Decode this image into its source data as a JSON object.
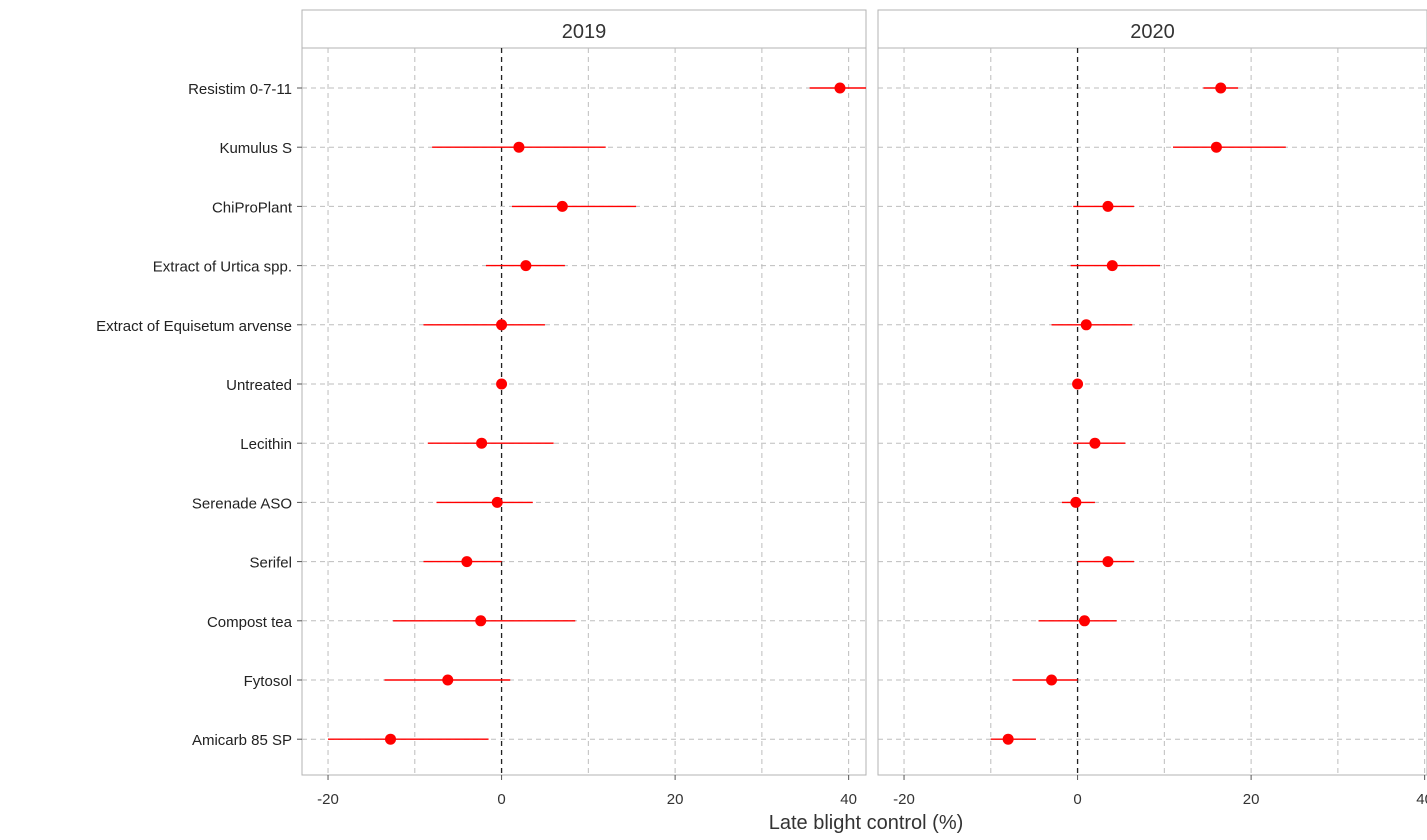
{
  "chart_data": {
    "type": "scatter",
    "subtype": "dot-and-whisker faceted",
    "xlabel": "Late blight control (%)",
    "xlim": [
      -23,
      42
    ],
    "x_ticks": [
      -20,
      0,
      20,
      40
    ],
    "grid": true,
    "reference_line_x": 0,
    "point_color": "#ff0000",
    "categories": [
      "Resistim 0-7-11",
      "Kumulus S",
      "ChiProPlant",
      "Extract of Urtica spp.",
      "Extract of Equisetum arvense",
      "Untreated",
      "Lecithin",
      "Serenade ASO",
      "Serifel",
      "Compost tea",
      "Fytosol",
      "Amicarb 85 SP"
    ],
    "panels": [
      {
        "title": "2019",
        "estimates": [
          39,
          2,
          7,
          2.8,
          0,
          0,
          -2.3,
          -0.5,
          -4,
          -2.4,
          -6.2,
          -12.8
        ],
        "lower": [
          35.5,
          -8,
          1.2,
          -1.8,
          -9,
          0,
          -8.5,
          -7.5,
          -9,
          -12.5,
          -13.5,
          -20
        ],
        "upper": [
          42.5,
          12,
          15.5,
          7.3,
          5,
          0,
          6,
          3.6,
          0,
          8.5,
          1,
          -1.5
        ]
      },
      {
        "title": "2020",
        "estimates": [
          16.5,
          16,
          3.5,
          4,
          1,
          0,
          2,
          -0.2,
          3.5,
          0.8,
          -3,
          -8
        ],
        "lower": [
          14.5,
          11,
          -0.5,
          -0.8,
          -3,
          0,
          -0.5,
          -1.8,
          0,
          -4.5,
          -7.5,
          -10
        ],
        "upper": [
          18.5,
          24,
          6.5,
          9.5,
          6.3,
          0,
          5.5,
          2,
          6.5,
          4.5,
          0,
          -4.8
        ]
      }
    ]
  }
}
